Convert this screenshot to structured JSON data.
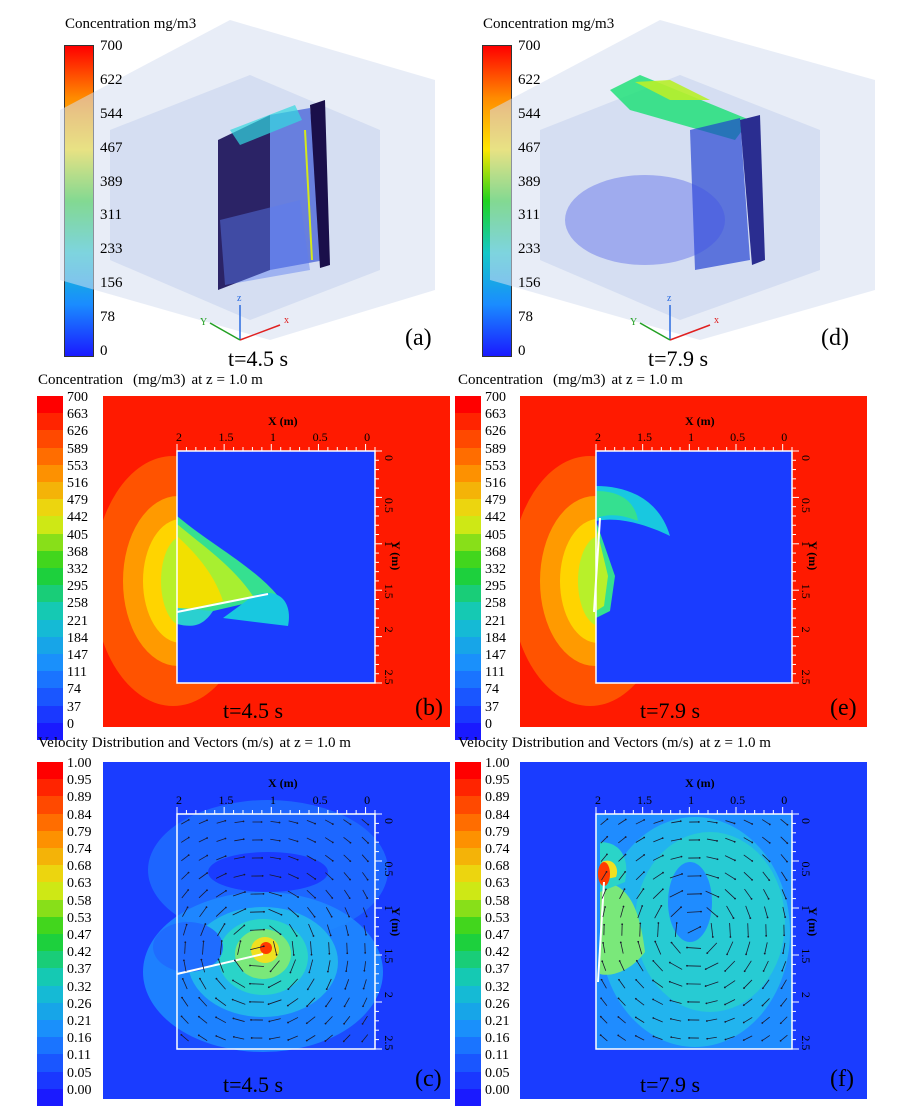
{
  "panels": {
    "a": {
      "label": "(a)",
      "time": "t=4.5 s"
    },
    "d": {
      "label": "(d)",
      "time": "t=7.9 s"
    },
    "b": {
      "label": "(b)",
      "time": "t=4.5 s"
    },
    "e": {
      "label": "(e)",
      "time": "t=7.9 s"
    },
    "c": {
      "label": "(c)",
      "time": "t=4.5 s"
    },
    "f": {
      "label": "(f)",
      "time": "t=7.9 s"
    }
  },
  "top_colorbar": {
    "title": "Concentration mg/m3",
    "ticks": [
      "700",
      "622",
      "544",
      "467",
      "389",
      "311",
      "233",
      "156",
      "78",
      "0"
    ]
  },
  "conc_header": {
    "name": "Concentration",
    "unit": "(mg/m3)",
    "at": "at z = 1.0 m"
  },
  "vel_header": {
    "name": "Velocity Distribution and Vectors (m/s)",
    "at": "at z = 1.0 m"
  },
  "conc_levels": [
    "700",
    "663",
    "626",
    "589",
    "553",
    "516",
    "479",
    "442",
    "405",
    "368",
    "332",
    "295",
    "258",
    "221",
    "184",
    "147",
    "111",
    "74",
    "37",
    "0"
  ],
  "vel_levels": [
    "1.00",
    "0.95",
    "0.89",
    "0.84",
    "0.79",
    "0.74",
    "0.68",
    "0.63",
    "0.58",
    "0.53",
    "0.47",
    "0.42",
    "0.37",
    "0.32",
    "0.26",
    "0.21",
    "0.16",
    "0.11",
    "0.05",
    "0.00"
  ],
  "axes": {
    "x_title": "X (m)",
    "y_title": "Y (m)",
    "x_ticks": [
      "2",
      "1.5",
      "1",
      "0.5",
      "0"
    ],
    "y_ticks": [
      "0",
      "0.5",
      "1",
      "1.5",
      "2",
      "2.5"
    ]
  },
  "triad": {
    "x": "x",
    "y": "Y",
    "z": "z"
  },
  "colors": {
    "jet_red": "#ff1a00",
    "jet_blue": "#1a3cff",
    "room_blue": "#1e3cff",
    "edge_white": "#ffffff"
  }
}
